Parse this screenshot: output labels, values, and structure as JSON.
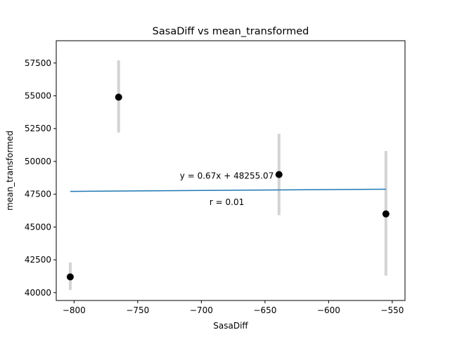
{
  "chart_data": {
    "type": "scatter",
    "title": "SasaDiff vs mean_transformed",
    "xlabel": "SasaDiff",
    "ylabel": "mean_transformed",
    "xlim": [
      -814,
      -540
    ],
    "ylim": [
      39400,
      59200
    ],
    "xticks": [
      -800,
      -750,
      -700,
      -650,
      -600,
      -550
    ],
    "xtick_labels": [
      "−800",
      "−750",
      "−700",
      "−650",
      "−600",
      "−550"
    ],
    "yticks": [
      40000,
      42500,
      45000,
      47500,
      50000,
      52500,
      55000,
      57500
    ],
    "ytick_labels": [
      "40000",
      "42500",
      "45000",
      "47500",
      "50000",
      "52500",
      "55000",
      "57500"
    ],
    "grid": false,
    "points": [
      {
        "x": -803,
        "y": 41200,
        "err_low": 40200,
        "err_high": 42300
      },
      {
        "x": -765,
        "y": 54900,
        "err_low": 52200,
        "err_high": 57700
      },
      {
        "x": -639,
        "y": 49000,
        "err_low": 45900,
        "err_high": 52100
      },
      {
        "x": -555,
        "y": 46000,
        "err_low": 41300,
        "err_high": 50800
      }
    ],
    "fit_line": {
      "x": [
        -803,
        -555
      ],
      "y": [
        47717,
        47883
      ]
    },
    "annotations": [
      {
        "text": "y = 0.67x + 48255.07",
        "x": -680,
        "y": 48900
      },
      {
        "text": "r = 0.01",
        "x": -680,
        "y": 46900
      }
    ],
    "colors": {
      "point": "#000000",
      "errorbar": "#d3d3d3",
      "fit": "#1f77b4"
    }
  }
}
